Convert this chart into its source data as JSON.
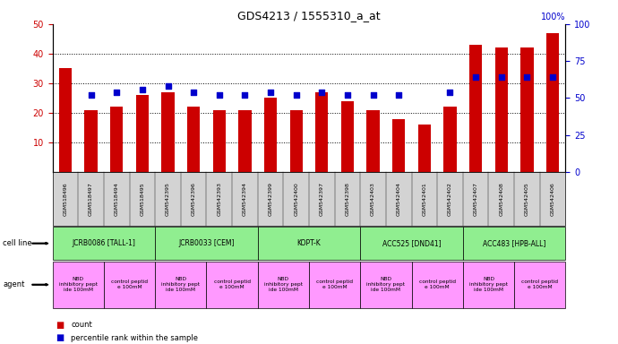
{
  "title": "GDS4213 / 1555310_a_at",
  "samples": [
    "GSM518496",
    "GSM518497",
    "GSM518494",
    "GSM518495",
    "GSM542395",
    "GSM542396",
    "GSM542393",
    "GSM542394",
    "GSM542399",
    "GSM542400",
    "GSM542397",
    "GSM542398",
    "GSM542403",
    "GSM542404",
    "GSM542401",
    "GSM542402",
    "GSM542407",
    "GSM542408",
    "GSM542405",
    "GSM542406"
  ],
  "counts": [
    35,
    21,
    22,
    26,
    27,
    22,
    21,
    21,
    25,
    21,
    27,
    24,
    21,
    18,
    16,
    22,
    43,
    42,
    42,
    47
  ],
  "percentiles": [
    null,
    26,
    27,
    28,
    29,
    27,
    26,
    26,
    27,
    26,
    27,
    26,
    26,
    26,
    null,
    27,
    32,
    32,
    32,
    32
  ],
  "cell_lines": [
    {
      "label": "JCRB0086 [TALL-1]",
      "start": 0,
      "end": 4,
      "color": "#90EE90"
    },
    {
      "label": "JCRB0033 [CEM]",
      "start": 4,
      "end": 8,
      "color": "#90EE90"
    },
    {
      "label": "KOPT-K",
      "start": 8,
      "end": 12,
      "color": "#90EE90"
    },
    {
      "label": "ACC525 [DND41]",
      "start": 12,
      "end": 16,
      "color": "#90EE90"
    },
    {
      "label": "ACC483 [HPB-ALL]",
      "start": 16,
      "end": 20,
      "color": "#90EE90"
    }
  ],
  "agents": [
    {
      "label": "NBD\ninhibitory pept\nide 100mM",
      "start": 0,
      "end": 2,
      "color": "#FF99FF"
    },
    {
      "label": "control peptid\ne 100mM",
      "start": 2,
      "end": 4,
      "color": "#FF99FF"
    },
    {
      "label": "NBD\ninhibitory pept\nide 100mM",
      "start": 4,
      "end": 6,
      "color": "#FF99FF"
    },
    {
      "label": "control peptid\ne 100mM",
      "start": 6,
      "end": 8,
      "color": "#FF99FF"
    },
    {
      "label": "NBD\ninhibitory pept\nide 100mM",
      "start": 8,
      "end": 10,
      "color": "#FF99FF"
    },
    {
      "label": "control peptid\ne 100mM",
      "start": 10,
      "end": 12,
      "color": "#FF99FF"
    },
    {
      "label": "NBD\ninhibitory pept\nide 100mM",
      "start": 12,
      "end": 14,
      "color": "#FF99FF"
    },
    {
      "label": "control peptid\ne 100mM",
      "start": 14,
      "end": 16,
      "color": "#FF99FF"
    },
    {
      "label": "NBD\ninhibitory pept\nide 100mM",
      "start": 16,
      "end": 18,
      "color": "#FF99FF"
    },
    {
      "label": "control peptid\ne 100mM",
      "start": 18,
      "end": 20,
      "color": "#FF99FF"
    }
  ],
  "ylim_left": [
    0,
    50
  ],
  "ylim_right": [
    0,
    100
  ],
  "yticks_left": [
    10,
    20,
    30,
    40,
    50
  ],
  "yticks_right": [
    0,
    25,
    50,
    75,
    100
  ],
  "bar_color": "#CC0000",
  "dot_color": "#0000CC",
  "bar_width": 0.5,
  "dot_size": 22,
  "background_color": "#FFFFFF",
  "tick_label_color_left": "#CC0000",
  "tick_label_color_right": "#0000CC",
  "xticklabel_bg": "#D3D3D3"
}
